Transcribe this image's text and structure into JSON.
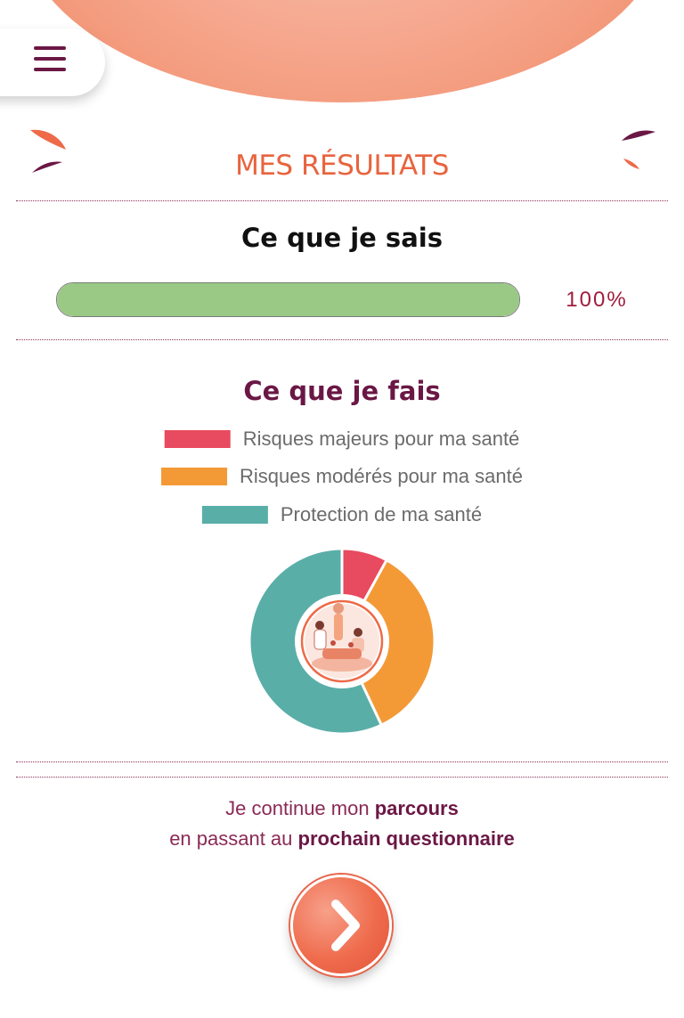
{
  "header": {
    "menu_icon": "hamburger-menu-icon",
    "title": "MES RÉSULTATS"
  },
  "knowledge": {
    "title": "Ce que je sais",
    "progress": 100,
    "progress_label": "100%"
  },
  "practice": {
    "title": "Ce que je fais",
    "legend": [
      {
        "label": "Risques majeurs pour ma santé",
        "color": "#e84a5f"
      },
      {
        "label": "Risques modérés pour ma santé",
        "color": "#f39a37"
      },
      {
        "label": "Protection de ma santé",
        "color": "#5aaea8"
      }
    ]
  },
  "chart_data": {
    "type": "pie",
    "categories": [
      "Risques majeurs pour ma santé",
      "Risques modérés pour ma santé",
      "Protection de ma santé"
    ],
    "values": [
      8,
      35,
      57
    ],
    "colors": [
      "#e84a5f",
      "#f39a37",
      "#5aaea8"
    ],
    "title": "Ce que je fais",
    "center_image": "people-activity-illustration-icon"
  },
  "cta": {
    "line1_prefix": "Je continue mon ",
    "line1_bold": "parcours",
    "line2_prefix": "en passant au ",
    "line2_bold": "prochain questionnaire"
  },
  "next_button": {
    "icon": "chevron-right-icon"
  }
}
